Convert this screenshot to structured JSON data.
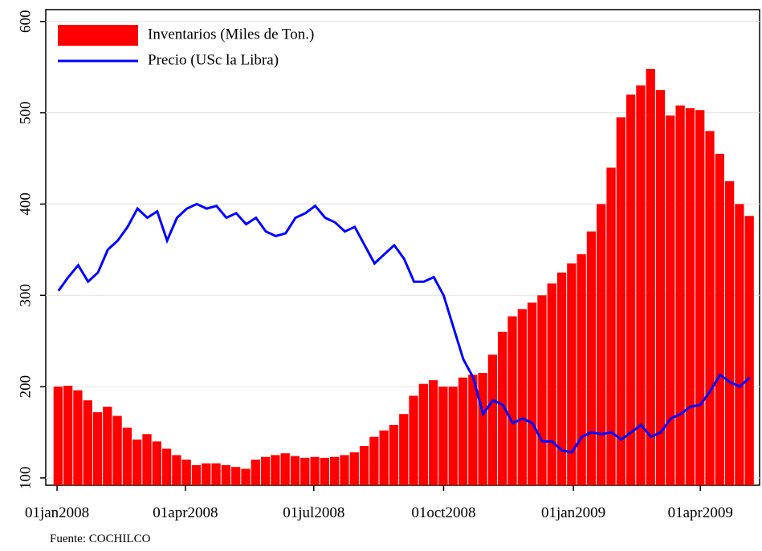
{
  "chart_data": {
    "type": "bar-line",
    "note": "Fuente: COCHILCO",
    "x": [
      "2008-01-02",
      "2008-01-09",
      "2008-01-16",
      "2008-01-23",
      "2008-01-30",
      "2008-02-06",
      "2008-02-13",
      "2008-02-20",
      "2008-02-27",
      "2008-03-05",
      "2008-03-12",
      "2008-03-19",
      "2008-03-26",
      "2008-04-02",
      "2008-04-09",
      "2008-04-16",
      "2008-04-23",
      "2008-04-30",
      "2008-05-07",
      "2008-05-14",
      "2008-05-21",
      "2008-05-28",
      "2008-06-04",
      "2008-06-11",
      "2008-06-18",
      "2008-06-25",
      "2008-07-02",
      "2008-07-09",
      "2008-07-16",
      "2008-07-23",
      "2008-07-30",
      "2008-08-06",
      "2008-08-13",
      "2008-08-20",
      "2008-08-27",
      "2008-09-03",
      "2008-09-10",
      "2008-09-17",
      "2008-09-24",
      "2008-10-01",
      "2008-10-08",
      "2008-10-15",
      "2008-10-22",
      "2008-10-29",
      "2008-11-05",
      "2008-11-12",
      "2008-11-19",
      "2008-11-26",
      "2008-12-03",
      "2008-12-10",
      "2008-12-17",
      "2008-12-24",
      "2008-12-31",
      "2009-01-07",
      "2009-01-14",
      "2009-01-21",
      "2009-01-28",
      "2009-02-04",
      "2009-02-11",
      "2009-02-18",
      "2009-02-25",
      "2009-03-04",
      "2009-03-11",
      "2009-03-18",
      "2009-03-25",
      "2009-04-01",
      "2009-04-08",
      "2009-04-15",
      "2009-04-22",
      "2009-04-29",
      "2009-05-06"
    ],
    "series": [
      {
        "name": "Inventarios (Miles de Ton.)",
        "kind": "bar",
        "color": "#ff0000",
        "values": [
          200,
          201,
          196,
          185,
          172,
          178,
          168,
          155,
          142,
          148,
          140,
          132,
          125,
          120,
          114,
          116,
          116,
          114,
          112,
          110,
          120,
          123,
          125,
          127,
          124,
          122,
          123,
          122,
          123,
          125,
          128,
          135,
          145,
          152,
          158,
          170,
          190,
          203,
          207,
          200,
          200,
          210,
          213,
          215,
          235,
          260,
          277,
          285,
          292,
          300,
          313,
          325,
          335,
          345,
          370,
          400,
          440,
          495,
          520,
          530,
          548,
          525,
          497,
          508,
          505,
          503,
          480,
          455,
          425,
          400,
          387
        ]
      },
      {
        "name": "Precio (USc la Libra)",
        "kind": "line",
        "color": "#0000ff",
        "values": [
          305,
          320,
          333,
          315,
          325,
          350,
          360,
          375,
          395,
          385,
          392,
          360,
          385,
          395,
          400,
          395,
          398,
          385,
          390,
          378,
          385,
          370,
          365,
          368,
          385,
          390,
          398,
          385,
          380,
          370,
          375,
          355,
          335,
          345,
          355,
          340,
          315,
          315,
          320,
          300,
          265,
          230,
          210,
          170,
          185,
          180,
          160,
          165,
          160,
          140,
          140,
          130,
          128,
          145,
          150,
          148,
          150,
          142,
          150,
          158,
          145,
          150,
          165,
          170,
          178,
          180,
          195,
          213,
          205,
          200,
          210
        ]
      }
    ],
    "xlim": [
      "2007-12-24",
      "2009-05-13"
    ],
    "xticks": [
      {
        "value": "2008-01-01",
        "label": "01jan2008"
      },
      {
        "value": "2008-04-01",
        "label": "01apr2008"
      },
      {
        "value": "2008-07-01",
        "label": "01jul2008"
      },
      {
        "value": "2008-10-01",
        "label": "01oct2008"
      },
      {
        "value": "2009-01-01",
        "label": "01jan2009"
      },
      {
        "value": "2009-04-01",
        "label": "01apr2009"
      }
    ],
    "ylim": [
      92,
      613
    ],
    "yticks": [
      100,
      200,
      300,
      400,
      500,
      600
    ],
    "grid": true,
    "legend": "top-left"
  }
}
